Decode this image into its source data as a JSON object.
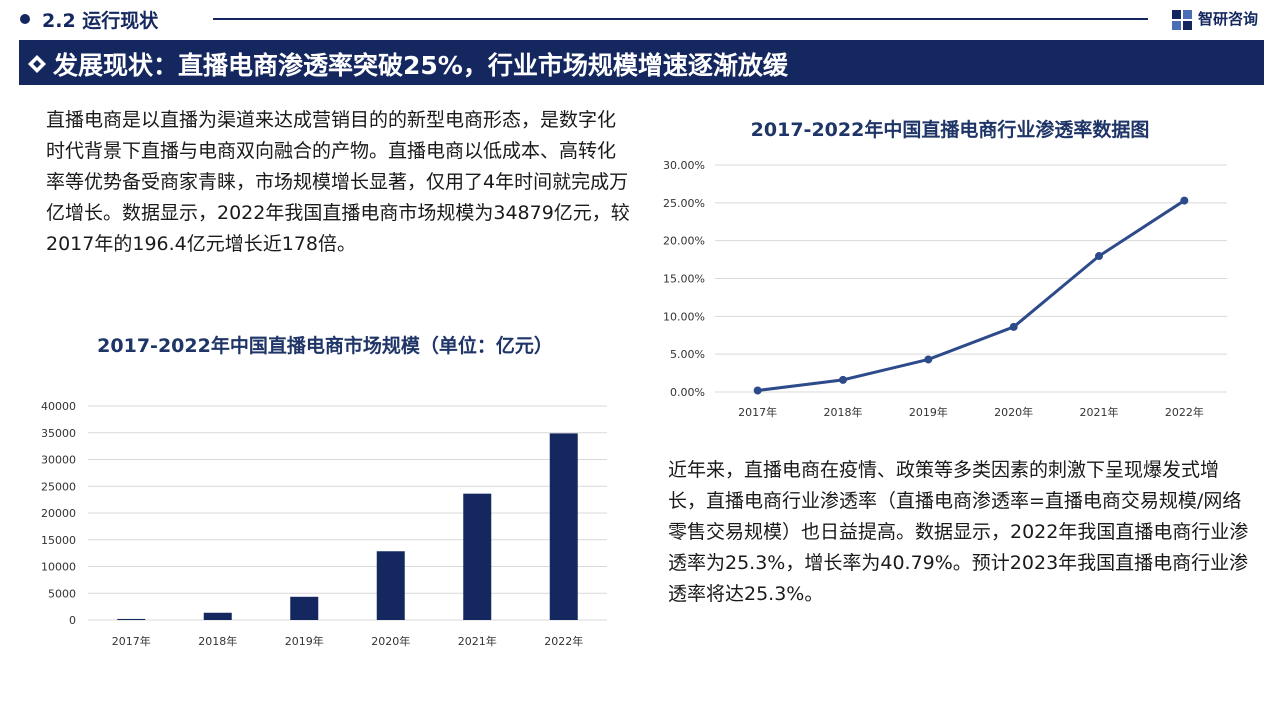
{
  "header": {
    "section_title": "2.2 运行现状",
    "brand": "智研咨询"
  },
  "banner": {
    "title": "发展现状：直播电商渗透率突破25%，行业市场规模增速逐渐放缓"
  },
  "left_paragraph": "直播电商是以直播为渠道来达成营销目的的新型电商形态，是数字化时代背景下直播与电商双向融合的产物。直播电商以低成本、高转化率等优势备受商家青睐，市场规模增长显著，仅用了4年时间就完成万亿增长。数据显示，2022年我国直播电商市场规模为34879亿元，较2017年的196.4亿元增长近178倍。",
  "right_paragraph": "近年来，直播电商在疫情、政策等多类因素的刺激下呈现爆发式增长，直播电商行业渗透率（直播电商渗透率=直播电商交易规模/网络零售交易规模）也日益提高。数据显示，2022年我国直播电商行业渗透率为25.3%，增长率为40.79%。预计2023年我国直播电商行业渗透率将达25.3%。",
  "colors": {
    "primary": "#14285f",
    "bar": "#14285f",
    "line": "#2d4a8a",
    "grid": "#d9d9d9"
  },
  "chart_data": [
    {
      "type": "bar",
      "title": "2017-2022年中国直播电商市场规模（单位：亿元）",
      "categories": [
        "2017年",
        "2018年",
        "2019年",
        "2020年",
        "2021年",
        "2022年"
      ],
      "values": [
        196.4,
        1354,
        4338,
        12850,
        23615,
        34879
      ],
      "ylim": [
        0,
        40000
      ],
      "yticks": [
        "0",
        "5000",
        "10000",
        "15000",
        "20000",
        "25000",
        "30000",
        "35000",
        "40000"
      ],
      "grid": true,
      "legend": "none"
    },
    {
      "type": "line",
      "title": "2017-2022年中国直播电商行业渗透率数据图",
      "categories": [
        "2017年",
        "2018年",
        "2019年",
        "2020年",
        "2021年",
        "2022年"
      ],
      "values": [
        0.2,
        1.6,
        4.3,
        8.6,
        17.97,
        25.3
      ],
      "ylim": [
        0,
        30
      ],
      "yticks": [
        "0.00%",
        "5.00%",
        "10.00%",
        "15.00%",
        "20.00%",
        "25.00%",
        "30.00%"
      ],
      "grid": true,
      "legend": "none"
    }
  ]
}
